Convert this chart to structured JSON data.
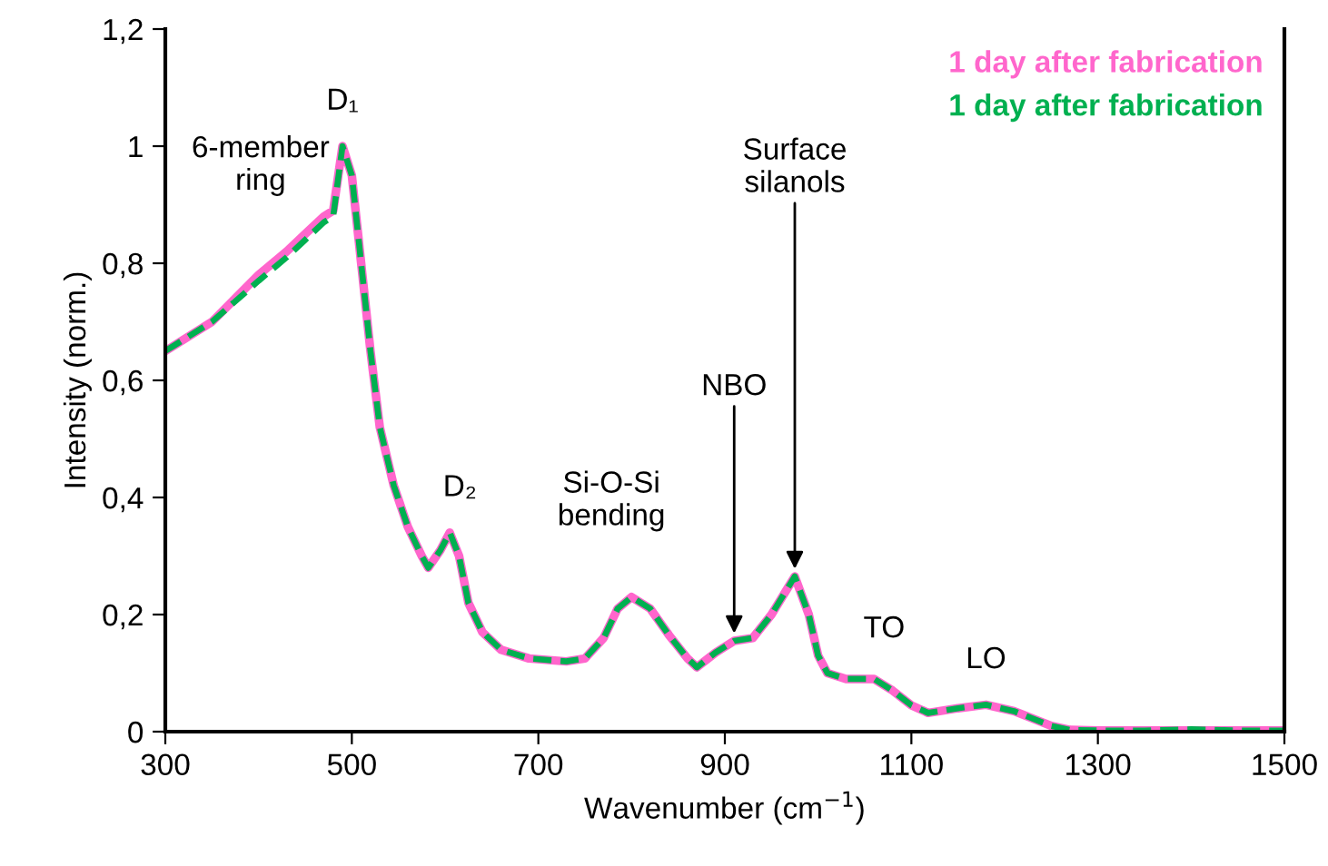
{
  "chart_data": {
    "type": "line",
    "xlabel": "Wavenumber (cm$^{−1}$)",
    "ylabel": "Intensity (norm.)",
    "x": [
      300,
      350,
      400,
      430,
      450,
      470,
      480,
      490,
      500,
      510,
      520,
      530,
      545,
      560,
      575,
      582,
      595,
      605,
      615,
      625,
      640,
      660,
      690,
      730,
      750,
      770,
      785,
      800,
      820,
      840,
      860,
      870,
      890,
      910,
      930,
      950,
      975,
      990,
      1000,
      1010,
      1030,
      1060,
      1080,
      1100,
      1118,
      1150,
      1180,
      1210,
      1250,
      1270,
      1300,
      1350,
      1400,
      1450,
      1500
    ],
    "series": [
      {
        "name": "1 day after fabrication",
        "color": "#ff66cc",
        "line_style": "solid",
        "values": [
          0.65,
          0.7,
          0.78,
          0.82,
          0.85,
          0.88,
          0.89,
          1.0,
          0.95,
          0.8,
          0.65,
          0.52,
          0.42,
          0.35,
          0.3,
          0.28,
          0.31,
          0.34,
          0.3,
          0.22,
          0.17,
          0.14,
          0.125,
          0.12,
          0.125,
          0.16,
          0.21,
          0.23,
          0.21,
          0.165,
          0.125,
          0.11,
          0.135,
          0.155,
          0.16,
          0.2,
          0.265,
          0.2,
          0.13,
          0.1,
          0.09,
          0.09,
          0.07,
          0.045,
          0.032,
          0.04,
          0.046,
          0.035,
          0.01,
          0.003,
          0.002,
          0.002,
          0.002,
          0.002,
          0.002
        ]
      },
      {
        "name": "1 day after fabrication",
        "color": "#00b050",
        "line_style": "dashed",
        "values": [
          0.65,
          0.7,
          0.77,
          0.81,
          0.84,
          0.87,
          0.88,
          1.0,
          0.95,
          0.8,
          0.65,
          0.52,
          0.42,
          0.35,
          0.3,
          0.28,
          0.31,
          0.34,
          0.3,
          0.22,
          0.17,
          0.14,
          0.125,
          0.12,
          0.125,
          0.16,
          0.21,
          0.23,
          0.21,
          0.165,
          0.125,
          0.11,
          0.135,
          0.155,
          0.16,
          0.2,
          0.265,
          0.2,
          0.13,
          0.1,
          0.09,
          0.09,
          0.07,
          0.045,
          0.032,
          0.04,
          0.046,
          0.035,
          0.01,
          0.003,
          0.002,
          0.002,
          0.004,
          0.002,
          0.002
        ]
      }
    ],
    "xlim": [
      300,
      1500
    ],
    "xticks": [
      300,
      500,
      700,
      900,
      1100,
      1300,
      1500
    ],
    "ylim": [
      0,
      1.2
    ],
    "yticks": [
      0,
      {
        "value": 0.2,
        "label": "0,2"
      },
      {
        "value": 0.4,
        "label": "0,4"
      },
      {
        "value": 0.6,
        "label": "0,6"
      },
      {
        "value": 0.8,
        "label": "0,8"
      },
      1,
      {
        "value": 1.2,
        "label": "1,2"
      }
    ],
    "grid": false,
    "legend": "top right",
    "marker": "none",
    "annotations": [
      {
        "text": "6-member\nring",
        "x": 440,
        "y": 0.82
      },
      {
        "text": "D₁",
        "x": 490,
        "y": 1.0
      },
      {
        "text": "D₂",
        "x": 605,
        "y": 0.34
      },
      {
        "text": "Si-O-Si\nbending",
        "x": 800,
        "y": 0.23
      },
      {
        "text": "NBO",
        "x": 910,
        "y": 0.155
      },
      {
        "text": "Surface\nsilanols",
        "x": 975,
        "y": 0.265
      },
      {
        "text": "TO",
        "x": 1060,
        "y": 0.09
      },
      {
        "text": "LO",
        "x": 1180,
        "y": 0.046
      }
    ]
  }
}
